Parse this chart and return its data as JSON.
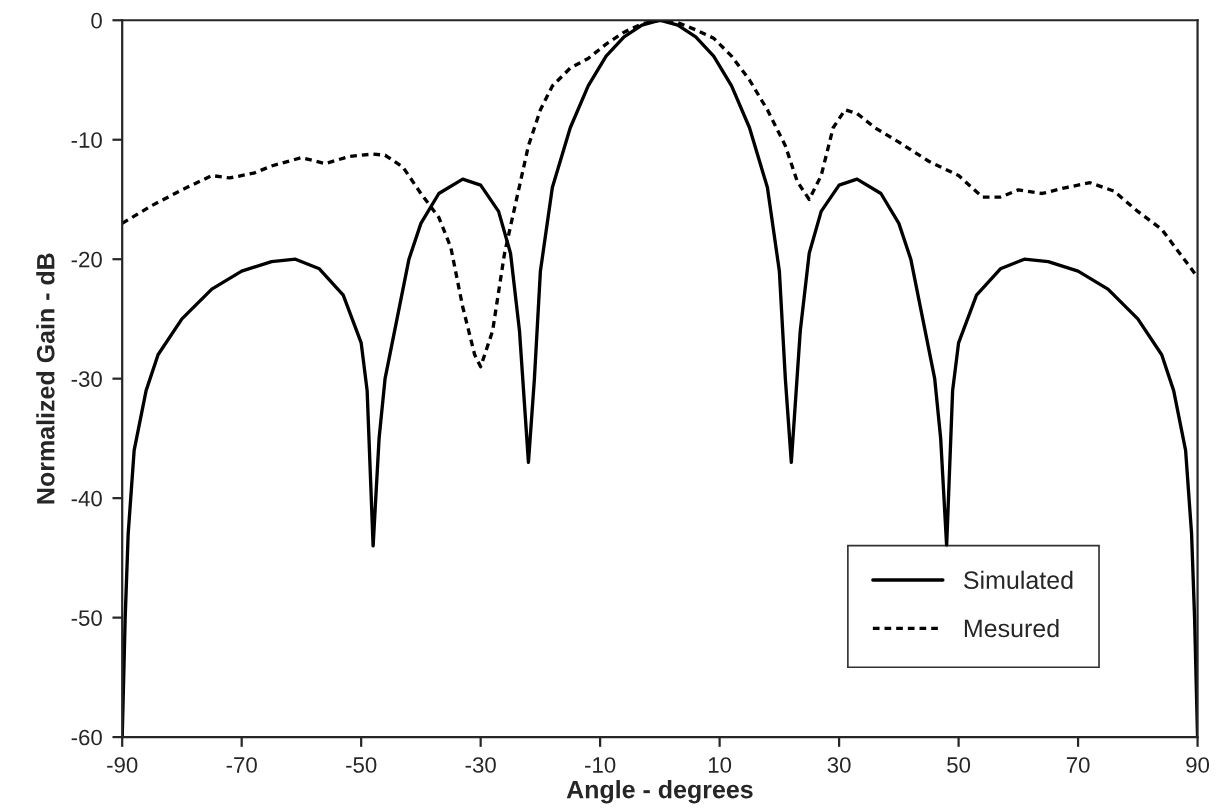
{
  "chart_data": {
    "type": "line",
    "xlabel": "Angle - degrees",
    "ylabel": "Normalized Gain - dB",
    "xlim": [
      -90,
      90
    ],
    "xticks": [
      -90,
      -70,
      -50,
      -30,
      -10,
      10,
      30,
      50,
      70,
      90
    ],
    "ylim": [
      -60,
      0
    ],
    "yticks": [
      -60,
      -50,
      -40,
      -30,
      -20,
      -10,
      0
    ],
    "grid": false,
    "legend": "bottom right",
    "marker": "none",
    "series": [
      {
        "name": "Simulated",
        "color": "#000000",
        "line_style": "solid",
        "x": [
          -90,
          -89.5,
          -89,
          -88,
          -86,
          -84,
          -80,
          -75,
          -70,
          -65,
          -61,
          -57,
          -53,
          -50,
          -49,
          -48,
          -47,
          -46,
          -44,
          -42,
          -40,
          -37,
          -33,
          -30,
          -27,
          -25,
          -23.5,
          -22,
          -21,
          -20,
          -18,
          -15,
          -12,
          -9,
          -6,
          -3,
          0,
          3,
          6,
          9,
          12,
          15,
          18,
          20,
          21,
          22,
          23.5,
          25,
          27,
          30,
          33,
          37,
          40,
          42,
          44,
          46,
          47,
          48,
          49,
          50,
          53,
          57,
          61,
          65,
          70,
          75,
          80,
          84,
          86,
          88,
          89,
          89.5,
          90
        ],
        "values": [
          -60,
          -50,
          -43,
          -36,
          -31,
          -28,
          -25,
          -22.5,
          -21,
          -20.2,
          -20,
          -20.8,
          -23,
          -27,
          -31,
          -44,
          -35,
          -30,
          -25,
          -20,
          -17,
          -14.5,
          -13.3,
          -13.8,
          -16,
          -19.5,
          -26,
          -37,
          -30,
          -21,
          -14,
          -9,
          -5.5,
          -3,
          -1.4,
          -0.4,
          0,
          -0.4,
          -1.4,
          -3,
          -5.5,
          -9,
          -14,
          -21,
          -30,
          -37,
          -26,
          -19.5,
          -16,
          -13.8,
          -13.3,
          -14.5,
          -17,
          -20,
          -25,
          -30,
          -35,
          -44,
          -31,
          -27,
          -23,
          -20.8,
          -20,
          -20.2,
          -21,
          -22.5,
          -25,
          -28,
          -31,
          -36,
          -43,
          -50,
          -60
        ]
      },
      {
        "name": "Mesured",
        "color": "#000000",
        "line_style": "dotted",
        "x": [
          -90,
          -85,
          -80,
          -75,
          -72,
          -68,
          -65,
          -60,
          -56,
          -52,
          -48,
          -46,
          -43,
          -40,
          -37,
          -35,
          -33,
          -31,
          -30,
          -28,
          -26,
          -24,
          -22,
          -20,
          -18,
          -15,
          -12,
          -9,
          -6,
          -3,
          0,
          3,
          6,
          9,
          12,
          15,
          18,
          21,
          23,
          25,
          27,
          29,
          31,
          33,
          36,
          40,
          45,
          50,
          54,
          57,
          60,
          64,
          68,
          72,
          76,
          80,
          84,
          87,
          90
        ],
        "values": [
          -17,
          -15.5,
          -14.2,
          -13,
          -13.2,
          -12.8,
          -12.2,
          -11.5,
          -12,
          -11.4,
          -11.2,
          -11.3,
          -12.3,
          -14.5,
          -16.5,
          -19,
          -24,
          -28,
          -29,
          -26,
          -19.5,
          -15,
          -10.5,
          -7.5,
          -5.5,
          -4,
          -3.2,
          -2,
          -1,
          -0.3,
          0,
          -0.2,
          -0.8,
          -1.5,
          -3,
          -5,
          -7.5,
          -10.5,
          -13.5,
          -15,
          -13,
          -9,
          -7.5,
          -7.8,
          -9,
          -10.2,
          -11.8,
          -13,
          -14.8,
          -14.8,
          -14.2,
          -14.5,
          -14,
          -13.6,
          -14.3,
          -16,
          -17.5,
          -19.5,
          -21.5
        ]
      }
    ]
  }
}
